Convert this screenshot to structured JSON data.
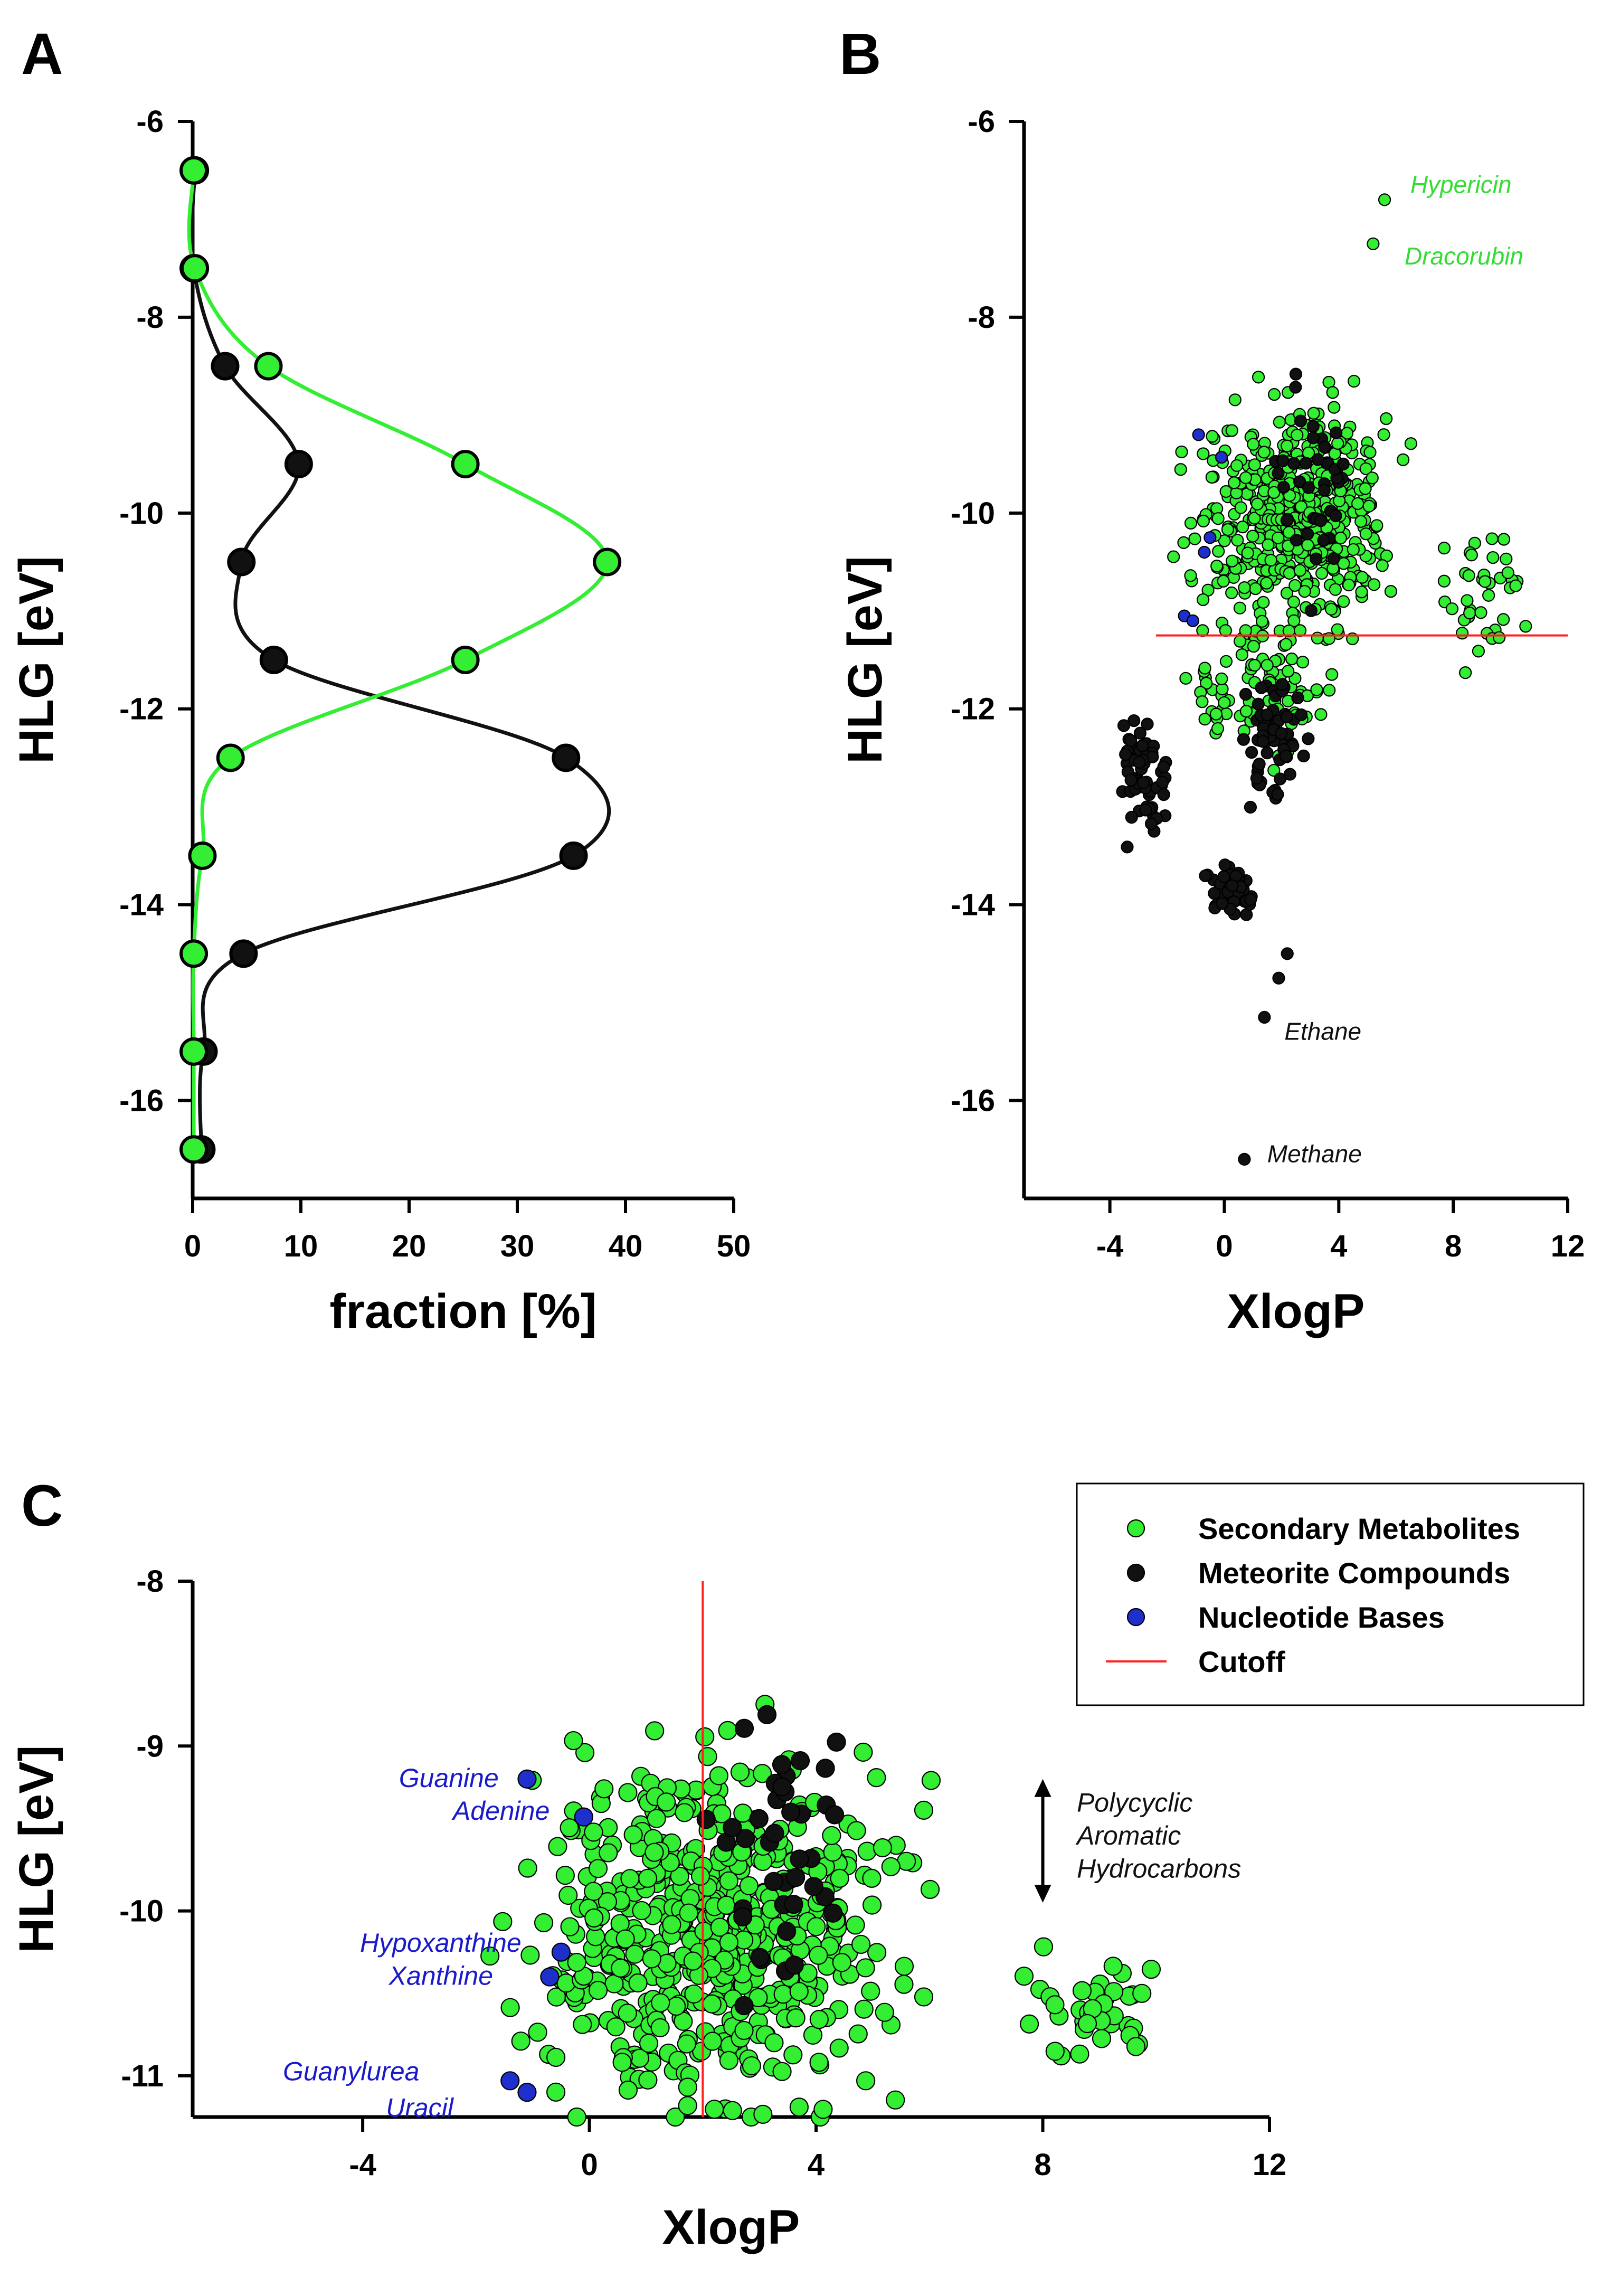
{
  "panels": {
    "a": {
      "letter": "A"
    },
    "b": {
      "letter": "B"
    },
    "c": {
      "letter": "C"
    }
  },
  "colors": {
    "secondary": "#33ee33",
    "meteorite": "#111111",
    "nucleotide": "#1f2fcc",
    "cutoff": "#ff2020",
    "axis": "#000000",
    "label_green": "#33dd33",
    "label_blue": "#1a1acc"
  },
  "chart_data": [
    {
      "id": "A",
      "type": "line",
      "title": "",
      "xlabel": "fraction [%]",
      "ylabel": "HLG [eV]",
      "xlim": [
        0,
        50
      ],
      "ylim": [
        -17,
        -6
      ],
      "xticks": [
        0,
        10,
        20,
        30,
        40,
        50
      ],
      "yticks": [
        -6,
        -8,
        -10,
        -12,
        -14,
        -16
      ],
      "series": [
        {
          "name": "Meteorite Compounds",
          "color": "#111111",
          "points": [
            {
              "x": 0.2,
              "y": -6.5
            },
            {
              "x": 0.1,
              "y": -7.5
            },
            {
              "x": 3,
              "y": -8.5
            },
            {
              "x": 9.8,
              "y": -9.5
            },
            {
              "x": 4.5,
              "y": -10.5
            },
            {
              "x": 7.5,
              "y": -11.5
            },
            {
              "x": 34.5,
              "y": -12.5
            },
            {
              "x": 35.2,
              "y": -13.5
            },
            {
              "x": 4.7,
              "y": -14.5
            },
            {
              "x": 1,
              "y": -15.5
            },
            {
              "x": 0.8,
              "y": -16.5
            }
          ]
        },
        {
          "name": "Secondary Metabolites",
          "color": "#33ee33",
          "points": [
            {
              "x": 0.1,
              "y": -6.5
            },
            {
              "x": 0.2,
              "y": -7.5
            },
            {
              "x": 7,
              "y": -8.5
            },
            {
              "x": 25.2,
              "y": -9.5
            },
            {
              "x": 38.3,
              "y": -10.5
            },
            {
              "x": 25.2,
              "y": -11.5
            },
            {
              "x": 3.5,
              "y": -12.5
            },
            {
              "x": 0.9,
              "y": -13.5
            },
            {
              "x": 0.1,
              "y": -14.5
            },
            {
              "x": 0.1,
              "y": -15.5
            },
            {
              "x": 0.1,
              "y": -16.5
            }
          ]
        }
      ]
    },
    {
      "id": "B",
      "type": "scatter",
      "title": "",
      "xlabel": "XlogP",
      "ylabel": "HLG [eV]",
      "xlim": [
        -7,
        12
      ],
      "ylim": [
        -17,
        -6
      ],
      "xticks": [
        -4,
        0,
        4,
        8,
        12
      ],
      "yticks": [
        -6,
        -8,
        -10,
        -12,
        -14,
        -16
      ],
      "cutoff_hline": -11.25,
      "annotations": [
        {
          "text": "Hypericin",
          "x": 6.5,
          "y": -6.65,
          "color": "#33dd33"
        },
        {
          "text": "Dracorubin",
          "x": 6.3,
          "y": -7.38,
          "color": "#33dd33"
        },
        {
          "text": "Ethane",
          "x": 2.1,
          "y": -15.3,
          "color": "#111111"
        },
        {
          "text": "Methane",
          "x": 1.5,
          "y": -16.55,
          "color": "#111111"
        }
      ],
      "highlight_points": [
        {
          "series": "Secondary Metabolites",
          "x": 5.6,
          "y": -6.8
        },
        {
          "series": "Secondary Metabolites",
          "x": 5.2,
          "y": -7.25
        },
        {
          "series": "Meteorite Compounds",
          "x": 1.4,
          "y": -15.15
        },
        {
          "series": "Meteorite Compounds",
          "x": 0.7,
          "y": -16.6
        },
        {
          "series": "Meteorite Compounds",
          "x": 2.2,
          "y": -14.5
        },
        {
          "series": "Meteorite Compounds",
          "x": 1.9,
          "y": -14.75
        },
        {
          "series": "Nucleotide Bases",
          "x": -0.9,
          "y": -9.2
        },
        {
          "series": "Nucleotide Bases",
          "x": -0.1,
          "y": -9.43
        },
        {
          "series": "Nucleotide Bases",
          "x": -0.5,
          "y": -10.25
        },
        {
          "series": "Nucleotide Bases",
          "x": -0.7,
          "y": -10.4
        },
        {
          "series": "Nucleotide Bases",
          "x": -1.4,
          "y": -11.05
        },
        {
          "series": "Nucleotide Bases",
          "x": -1.1,
          "y": -11.1
        }
      ],
      "clusters": [
        {
          "series": "Secondary Metabolites",
          "n": 520,
          "x_range": [
            -2.2,
            7.3
          ],
          "y_range": [
            -11.3,
            -8.1
          ],
          "x_mean": 2.4,
          "y_mean": -10.0
        },
        {
          "series": "Secondary Metabolites",
          "n": 40,
          "x_range": [
            7,
            10.8
          ],
          "y_range": [
            -12.1,
            -10.1
          ],
          "x_mean": 9.0,
          "y_mean": -10.8
        },
        {
          "series": "Secondary Metabolites",
          "n": 90,
          "x_range": [
            -2.5,
            5.5
          ],
          "y_range": [
            -13.3,
            -11.2
          ],
          "x_mean": 1.5,
          "y_mean": -11.8
        },
        {
          "series": "Meteorite Compounds",
          "n": 60,
          "x_range": [
            -4,
            -1.5
          ],
          "y_range": [
            -13.6,
            -11.9
          ],
          "x_mean": -2.8,
          "y_mean": -12.7
        },
        {
          "series": "Meteorite Compounds",
          "n": 50,
          "x_range": [
            -1.2,
            1.5
          ],
          "y_range": [
            -14.2,
            -13.5
          ],
          "x_mean": 0.2,
          "y_mean": -13.85
        },
        {
          "series": "Meteorite Compounds",
          "n": 60,
          "x_range": [
            0.5,
            4
          ],
          "y_range": [
            -13.5,
            -11.0
          ],
          "x_mean": 1.8,
          "y_mean": -12.3
        },
        {
          "series": "Meteorite Compounds",
          "n": 40,
          "x_range": [
            1.5,
            5.2
          ],
          "y_range": [
            -11.0,
            -8.2
          ],
          "x_mean": 3.2,
          "y_mean": -9.8
        }
      ]
    },
    {
      "id": "C",
      "type": "scatter",
      "title": "",
      "xlabel": "XlogP",
      "ylabel": "HLG [eV]",
      "xlim": [
        -7,
        12
      ],
      "ylim": [
        -11.25,
        -8
      ],
      "xticks": [
        -4,
        0,
        4,
        8,
        12
      ],
      "yticks": [
        -8,
        -9,
        -10,
        -11
      ],
      "cutoff_vline": 2.0,
      "legend": {
        "position": "top-right",
        "entries": [
          {
            "label": "Secondary Metabolites",
            "marker": "circle",
            "color": "#33ee33"
          },
          {
            "label": "Meteorite Compounds",
            "marker": "circle",
            "color": "#111111"
          },
          {
            "label": "Nucleotide Bases",
            "marker": "circle",
            "color": "#1f2fcc"
          },
          {
            "label": "Cutoff",
            "marker": "line",
            "color": "#ff2020"
          }
        ]
      },
      "annotations": [
        {
          "text": "Guanine",
          "x": -1.6,
          "y": -9.2,
          "color": "#1a1acc",
          "anchor": "end"
        },
        {
          "text": "Adenine",
          "x": -0.7,
          "y": -9.4,
          "color": "#1a1acc",
          "anchor": "end"
        },
        {
          "text": "Hypoxanthine",
          "x": -1.2,
          "y": -10.2,
          "color": "#1a1acc",
          "anchor": "end"
        },
        {
          "text": "Xanthine",
          "x": -1.7,
          "y": -10.4,
          "color": "#1a1acc",
          "anchor": "end"
        },
        {
          "text": "Guanylurea",
          "x": -3.0,
          "y": -10.98,
          "color": "#1a1acc",
          "anchor": "end"
        },
        {
          "text": "Uracil",
          "x": -2.4,
          "y": -11.2,
          "color": "#1a1acc",
          "anchor": "end"
        },
        {
          "text": "Polycyclic",
          "x": 8.6,
          "y": -9.35,
          "color": "#111111",
          "anchor": "start"
        },
        {
          "text": "Aromatic",
          "x": 8.6,
          "y": -9.55,
          "color": "#111111",
          "anchor": "start"
        },
        {
          "text": "Hydrocarbons",
          "x": 8.6,
          "y": -9.75,
          "color": "#111111",
          "anchor": "start"
        }
      ],
      "range_arrow": {
        "x": 8.0,
        "y_from": -9.2,
        "y_to": -9.95
      },
      "highlight_points": [
        {
          "series": "Nucleotide Bases",
          "x": -1.1,
          "y": -9.2
        },
        {
          "series": "Nucleotide Bases",
          "x": -0.1,
          "y": -9.43
        },
        {
          "series": "Nucleotide Bases",
          "x": -0.5,
          "y": -10.25
        },
        {
          "series": "Nucleotide Bases",
          "x": -0.7,
          "y": -10.4
        },
        {
          "series": "Nucleotide Bases",
          "x": -1.4,
          "y": -11.03
        },
        {
          "series": "Nucleotide Bases",
          "x": -1.1,
          "y": -11.1
        }
      ],
      "clusters": [
        {
          "series": "Secondary Metabolites",
          "n": 560,
          "x_range": [
            -2.2,
            7.3
          ],
          "y_range": [
            -11.25,
            -8.1
          ],
          "x_mean": 2.2,
          "y_mean": -10.1
        },
        {
          "series": "Secondary Metabolites",
          "n": 40,
          "x_range": [
            7,
            10.6
          ],
          "y_range": [
            -11.1,
            -10.1
          ],
          "x_mean": 9.0,
          "y_mean": -10.6
        },
        {
          "series": "Meteorite Compounds",
          "n": 40,
          "x_range": [
            1.8,
            5.2
          ],
          "y_range": [
            -11.1,
            -8.25
          ],
          "x_mean": 3.3,
          "y_mean": -9.6
        }
      ]
    }
  ]
}
